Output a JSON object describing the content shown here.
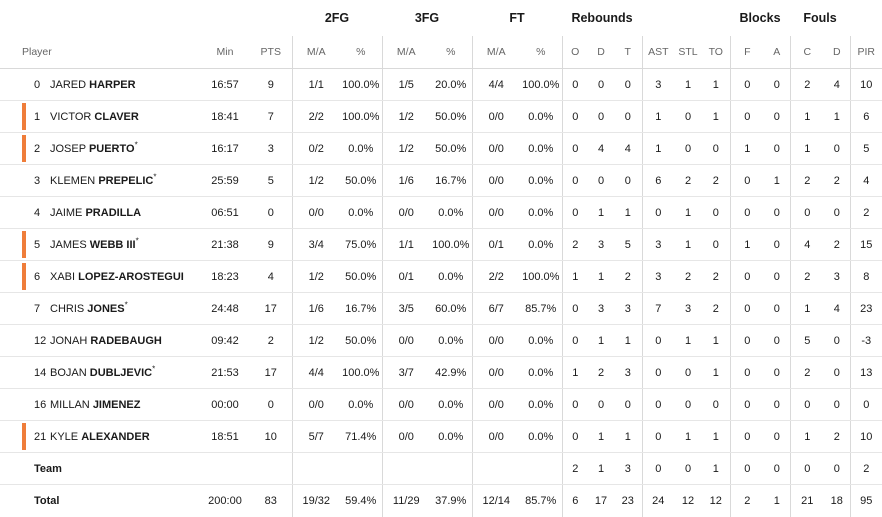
{
  "groups": {
    "fg2": "2FG",
    "fg3": "3FG",
    "ft": "FT",
    "reb": "Rebounds",
    "blk": "Blocks",
    "fouls": "Fouls"
  },
  "headers": {
    "player": "Player",
    "min": "Min",
    "pts": "PTS",
    "fg2_ma": "M/A",
    "fg2_pct": "%",
    "fg3_ma": "M/A",
    "fg3_pct": "%",
    "ft_ma": "M/A",
    "ft_pct": "%",
    "o": "O",
    "d": "D",
    "t": "T",
    "ast": "AST",
    "stl": "STL",
    "to": "TO",
    "f": "F",
    "a": "A",
    "c": "C",
    "fd": "D",
    "pir": "PIR"
  },
  "players": [
    {
      "num": "0",
      "first": "JARED",
      "last": "HARPER",
      "star": "",
      "starter": false,
      "min": "16:57",
      "pts": "9",
      "fg2_ma": "1/1",
      "fg2_pct": "100.0%",
      "fg3_ma": "1/5",
      "fg3_pct": "20.0%",
      "ft_ma": "4/4",
      "ft_pct": "100.0%",
      "o": "0",
      "d": "0",
      "t": "0",
      "ast": "3",
      "stl": "1",
      "to": "1",
      "f": "0",
      "a": "0",
      "c": "2",
      "fd": "4",
      "pir": "10"
    },
    {
      "num": "1",
      "first": "VICTOR",
      "last": "CLAVER",
      "star": "",
      "starter": true,
      "min": "18:41",
      "pts": "7",
      "fg2_ma": "2/2",
      "fg2_pct": "100.0%",
      "fg3_ma": "1/2",
      "fg3_pct": "50.0%",
      "ft_ma": "0/0",
      "ft_pct": "0.0%",
      "o": "0",
      "d": "0",
      "t": "0",
      "ast": "1",
      "stl": "0",
      "to": "1",
      "f": "0",
      "a": "0",
      "c": "1",
      "fd": "1",
      "pir": "6"
    },
    {
      "num": "2",
      "first": "JOSEP",
      "last": "PUERTO",
      "star": "*",
      "starter": true,
      "min": "16:17",
      "pts": "3",
      "fg2_ma": "0/2",
      "fg2_pct": "0.0%",
      "fg3_ma": "1/2",
      "fg3_pct": "50.0%",
      "ft_ma": "0/0",
      "ft_pct": "0.0%",
      "o": "0",
      "d": "4",
      "t": "4",
      "ast": "1",
      "stl": "0",
      "to": "0",
      "f": "1",
      "a": "0",
      "c": "1",
      "fd": "0",
      "pir": "5"
    },
    {
      "num": "3",
      "first": "KLEMEN",
      "last": "PREPELIC",
      "star": "*",
      "starter": false,
      "min": "25:59",
      "pts": "5",
      "fg2_ma": "1/2",
      "fg2_pct": "50.0%",
      "fg3_ma": "1/6",
      "fg3_pct": "16.7%",
      "ft_ma": "0/0",
      "ft_pct": "0.0%",
      "o": "0",
      "d": "0",
      "t": "0",
      "ast": "6",
      "stl": "2",
      "to": "2",
      "f": "0",
      "a": "1",
      "c": "2",
      "fd": "2",
      "pir": "4"
    },
    {
      "num": "4",
      "first": "JAIME",
      "last": "PRADILLA",
      "star": "",
      "starter": false,
      "min": "06:51",
      "pts": "0",
      "fg2_ma": "0/0",
      "fg2_pct": "0.0%",
      "fg3_ma": "0/0",
      "fg3_pct": "0.0%",
      "ft_ma": "0/0",
      "ft_pct": "0.0%",
      "o": "0",
      "d": "1",
      "t": "1",
      "ast": "0",
      "stl": "1",
      "to": "0",
      "f": "0",
      "a": "0",
      "c": "0",
      "fd": "0",
      "pir": "2"
    },
    {
      "num": "5",
      "first": "JAMES",
      "last": "WEBB III",
      "star": "*",
      "starter": true,
      "min": "21:38",
      "pts": "9",
      "fg2_ma": "3/4",
      "fg2_pct": "75.0%",
      "fg3_ma": "1/1",
      "fg3_pct": "100.0%",
      "ft_ma": "0/1",
      "ft_pct": "0.0%",
      "o": "2",
      "d": "3",
      "t": "5",
      "ast": "3",
      "stl": "1",
      "to": "0",
      "f": "1",
      "a": "0",
      "c": "4",
      "fd": "2",
      "pir": "15"
    },
    {
      "num": "6",
      "first": "XABI",
      "last": "LOPEZ-AROSTEGUI",
      "star": "",
      "starter": true,
      "min": "18:23",
      "pts": "4",
      "fg2_ma": "1/2",
      "fg2_pct": "50.0%",
      "fg3_ma": "0/1",
      "fg3_pct": "0.0%",
      "ft_ma": "2/2",
      "ft_pct": "100.0%",
      "o": "1",
      "d": "1",
      "t": "2",
      "ast": "3",
      "stl": "2",
      "to": "2",
      "f": "0",
      "a": "0",
      "c": "2",
      "fd": "3",
      "pir": "8"
    },
    {
      "num": "7",
      "first": "CHRIS",
      "last": "JONES",
      "star": "*",
      "starter": false,
      "min": "24:48",
      "pts": "17",
      "fg2_ma": "1/6",
      "fg2_pct": "16.7%",
      "fg3_ma": "3/5",
      "fg3_pct": "60.0%",
      "ft_ma": "6/7",
      "ft_pct": "85.7%",
      "o": "0",
      "d": "3",
      "t": "3",
      "ast": "7",
      "stl": "3",
      "to": "2",
      "f": "0",
      "a": "0",
      "c": "1",
      "fd": "4",
      "pir": "23"
    },
    {
      "num": "12",
      "first": "JONAH",
      "last": "RADEBAUGH",
      "star": "",
      "starter": false,
      "min": "09:42",
      "pts": "2",
      "fg2_ma": "1/2",
      "fg2_pct": "50.0%",
      "fg3_ma": "0/0",
      "fg3_pct": "0.0%",
      "ft_ma": "0/0",
      "ft_pct": "0.0%",
      "o": "0",
      "d": "1",
      "t": "1",
      "ast": "0",
      "stl": "1",
      "to": "1",
      "f": "0",
      "a": "0",
      "c": "5",
      "fd": "0",
      "pir": "-3"
    },
    {
      "num": "14",
      "first": "BOJAN",
      "last": "DUBLJEVIC",
      "star": "*",
      "starter": false,
      "min": "21:53",
      "pts": "17",
      "fg2_ma": "4/4",
      "fg2_pct": "100.0%",
      "fg3_ma": "3/7",
      "fg3_pct": "42.9%",
      "ft_ma": "0/0",
      "ft_pct": "0.0%",
      "o": "1",
      "d": "2",
      "t": "3",
      "ast": "0",
      "stl": "0",
      "to": "1",
      "f": "0",
      "a": "0",
      "c": "2",
      "fd": "0",
      "pir": "13"
    },
    {
      "num": "16",
      "first": "MILLAN",
      "last": "JIMENEZ",
      "star": "",
      "starter": false,
      "min": "00:00",
      "pts": "0",
      "fg2_ma": "0/0",
      "fg2_pct": "0.0%",
      "fg3_ma": "0/0",
      "fg3_pct": "0.0%",
      "ft_ma": "0/0",
      "ft_pct": "0.0%",
      "o": "0",
      "d": "0",
      "t": "0",
      "ast": "0",
      "stl": "0",
      "to": "0",
      "f": "0",
      "a": "0",
      "c": "0",
      "fd": "0",
      "pir": "0"
    },
    {
      "num": "21",
      "first": "KYLE",
      "last": "ALEXANDER",
      "star": "",
      "starter": true,
      "min": "18:51",
      "pts": "10",
      "fg2_ma": "5/7",
      "fg2_pct": "71.4%",
      "fg3_ma": "0/0",
      "fg3_pct": "0.0%",
      "ft_ma": "0/0",
      "ft_pct": "0.0%",
      "o": "0",
      "d": "1",
      "t": "1",
      "ast": "0",
      "stl": "1",
      "to": "1",
      "f": "0",
      "a": "0",
      "c": "1",
      "fd": "2",
      "pir": "10"
    }
  ],
  "team": {
    "label": "Team",
    "o": "2",
    "d": "1",
    "t": "3",
    "ast": "0",
    "stl": "0",
    "to": "1",
    "f": "0",
    "a": "0",
    "c": "0",
    "fd": "0",
    "pir": "2"
  },
  "total": {
    "label": "Total",
    "min": "200:00",
    "pts": "83",
    "fg2_ma": "19/32",
    "fg2_pct": "59.4%",
    "fg3_ma": "11/29",
    "fg3_pct": "37.9%",
    "ft_ma": "12/14",
    "ft_pct": "85.7%",
    "o": "6",
    "d": "17",
    "t": "23",
    "ast": "24",
    "stl": "12",
    "to": "12",
    "f": "2",
    "a": "1",
    "c": "21",
    "fd": "18",
    "pir": "95"
  },
  "colors": {
    "starter_mark": "#ef7d3a",
    "divider": "#d9d9d9"
  }
}
